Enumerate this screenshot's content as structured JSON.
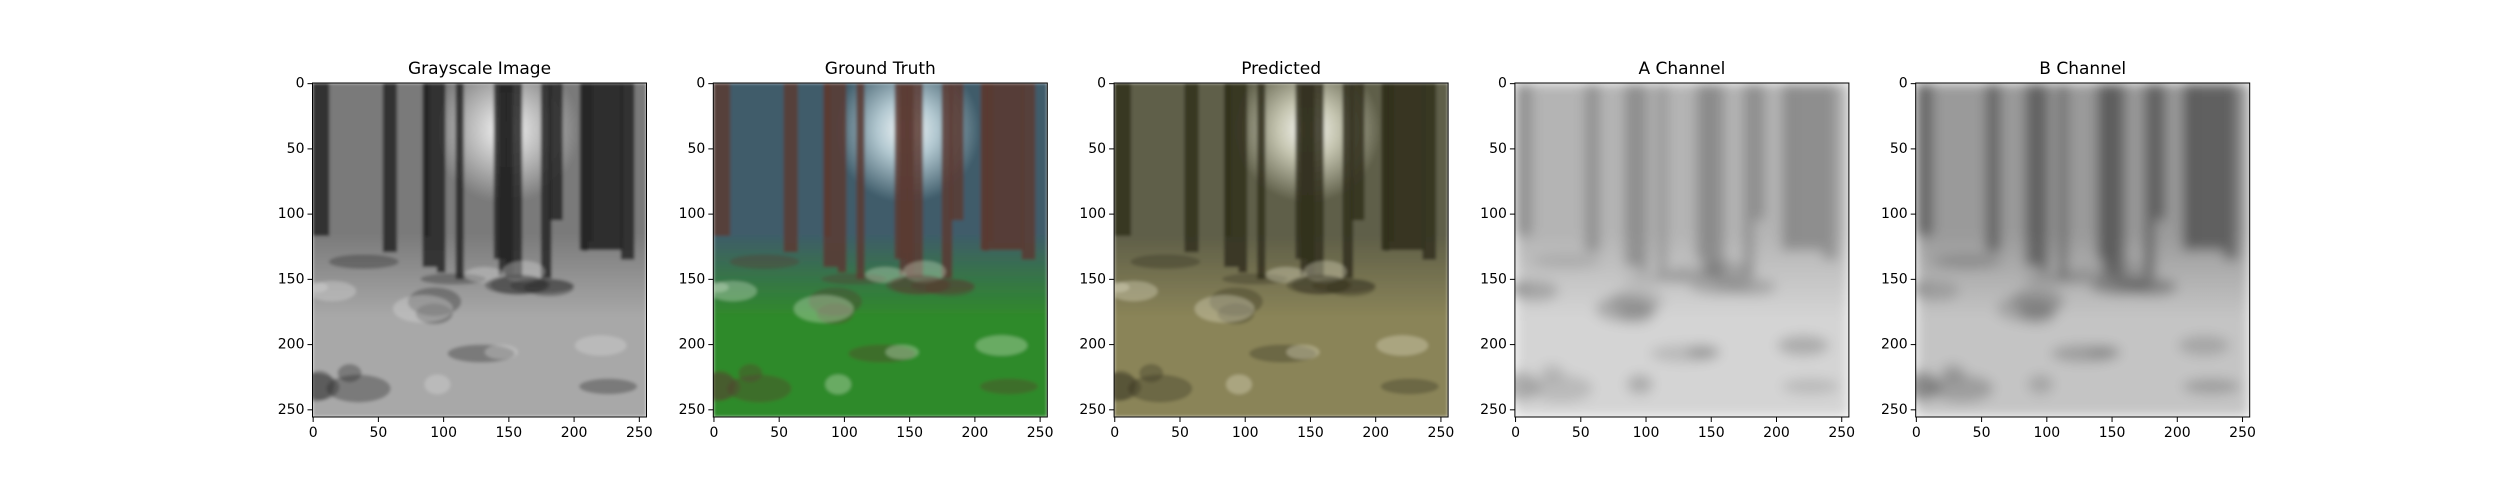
{
  "chart_data": [
    {
      "type": "image",
      "title": "Grayscale Image",
      "xlim": [
        -0.5,
        255.5
      ],
      "ylim": [
        255.5,
        -0.5
      ],
      "xticks": [
        0,
        50,
        100,
        150,
        200,
        250
      ],
      "yticks": [
        0,
        50,
        100,
        150,
        200,
        250
      ]
    },
    {
      "type": "image",
      "title": "Ground Truth",
      "xlim": [
        -0.5,
        255.5
      ],
      "ylim": [
        255.5,
        -0.5
      ],
      "xticks": [
        0,
        50,
        100,
        150,
        200,
        250
      ],
      "yticks": [
        0,
        50,
        100,
        150,
        200,
        250
      ]
    },
    {
      "type": "image",
      "title": "Predicted",
      "xlim": [
        -0.5,
        255.5
      ],
      "ylim": [
        255.5,
        -0.5
      ],
      "xticks": [
        0,
        50,
        100,
        150,
        200,
        250
      ],
      "yticks": [
        0,
        50,
        100,
        150,
        200,
        250
      ]
    },
    {
      "type": "image",
      "title": "A Channel",
      "xlim": [
        -0.5,
        255.5
      ],
      "ylim": [
        255.5,
        -0.5
      ],
      "xticks": [
        0,
        50,
        100,
        150,
        200,
        250
      ],
      "yticks": [
        0,
        50,
        100,
        150,
        200,
        250
      ]
    },
    {
      "type": "image",
      "title": "B Channel",
      "xlim": [
        -0.5,
        255.5
      ],
      "ylim": [
        255.5,
        -0.5
      ],
      "xticks": [
        0,
        50,
        100,
        150,
        200,
        250
      ],
      "yticks": [
        0,
        50,
        100,
        150,
        200,
        250
      ]
    }
  ]
}
